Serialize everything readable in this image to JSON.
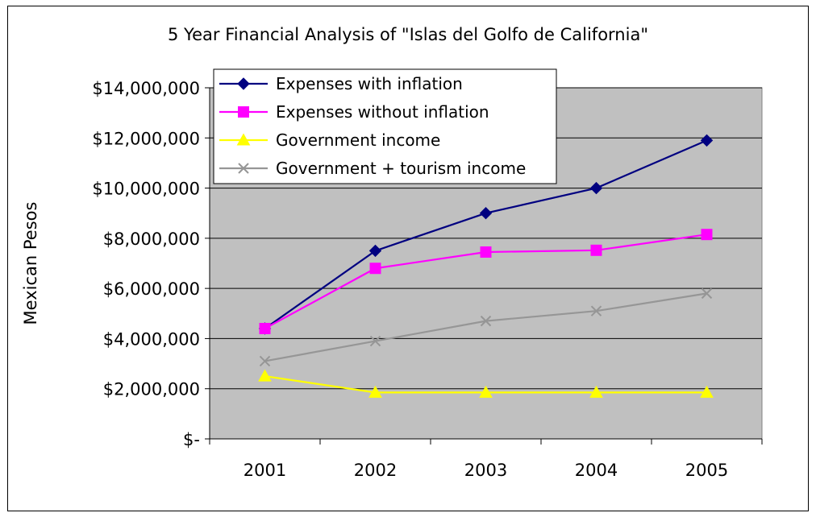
{
  "chart_data": {
    "type": "line",
    "title": "5 Year Financial Analysis of \"Islas del Golfo de California\"",
    "xlabel": "",
    "ylabel": "Mexican Pesos",
    "categories": [
      "2001",
      "2002",
      "2003",
      "2004",
      "2005"
    ],
    "ylim": [
      0,
      14000000
    ],
    "yticks": [
      0,
      2000000,
      4000000,
      6000000,
      8000000,
      10000000,
      12000000,
      14000000
    ],
    "ytick_labels": [
      "$-",
      "$2,000,000",
      "$4,000,000",
      "$6,000,000",
      "$8,000,000",
      "$10,000,000",
      "$12,000,000",
      "$14,000,000"
    ],
    "grid": true,
    "legend_position": "top-left",
    "plot_background": "#c0c0c0",
    "series": [
      {
        "name": "Expenses with inflation",
        "color": "#000080",
        "marker": "diamond",
        "values": [
          4400000,
          7500000,
          9000000,
          10000000,
          11900000
        ]
      },
      {
        "name": "Expenses without inflation",
        "color": "#ff00ff",
        "marker": "square",
        "values": [
          4400000,
          6800000,
          7450000,
          7520000,
          8150000
        ]
      },
      {
        "name": "Government income",
        "color": "#ffff00",
        "marker": "triangle",
        "values": [
          2500000,
          1850000,
          1850000,
          1850000,
          1850000
        ]
      },
      {
        "name": "Government + tourism income",
        "color": "#969696",
        "marker": "x",
        "values": [
          3100000,
          3900000,
          4700000,
          5100000,
          5800000
        ]
      }
    ]
  }
}
